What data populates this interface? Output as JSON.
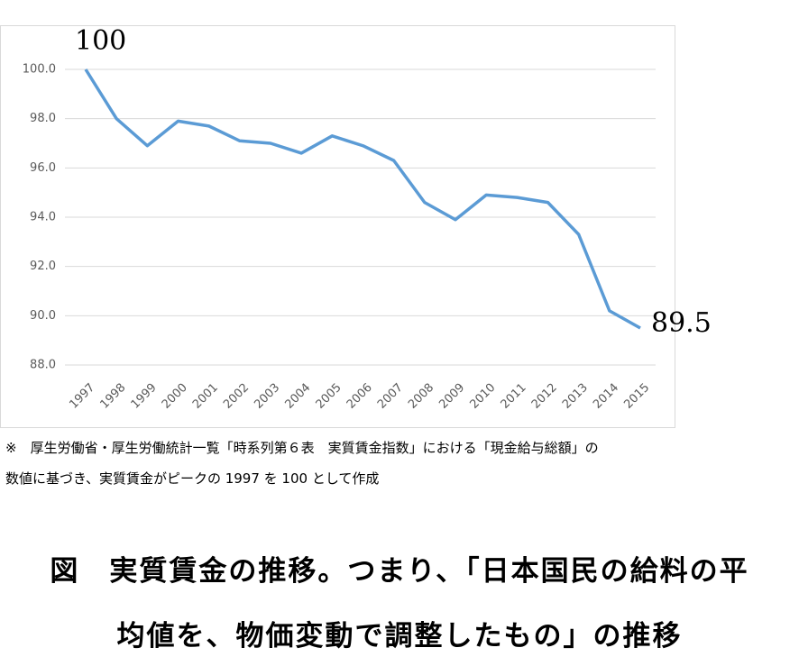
{
  "chart_data": {
    "type": "line",
    "categories": [
      "1997",
      "1998",
      "1999",
      "2000",
      "2001",
      "2002",
      "2003",
      "2004",
      "2005",
      "2006",
      "2007",
      "2008",
      "2009",
      "2010",
      "2011",
      "2012",
      "2013",
      "2014",
      "2015"
    ],
    "series": [
      {
        "color": "#5b9bd5",
        "values": [
          100,
          98.0,
          96.9,
          97.9,
          97.7,
          97.1,
          97.0,
          96.6,
          97.3,
          96.9,
          96.3,
          94.6,
          93.9,
          94.9,
          94.8,
          94.6,
          93.3,
          90.2,
          89.5
        ]
      }
    ],
    "ylim": [
      88,
      100
    ],
    "yticks": [
      {
        "value": 88,
        "label": "88.0"
      },
      {
        "value": 90,
        "label": "90.0"
      },
      {
        "value": 92,
        "label": "92.0"
      },
      {
        "value": 94,
        "label": "94.0"
      },
      {
        "value": 96,
        "label": "96.0"
      },
      {
        "value": 98,
        "label": "98.0"
      },
      {
        "value": 100,
        "label": "100.0"
      }
    ],
    "grid": true,
    "annotations": [
      "100",
      "89.5"
    ]
  },
  "note": [
    "※　厚生労働省・厚生労働統計一覧「時系列第６表　実質賃金指数」における「現金給与総額」の",
    "数値に基づき、実質賃金がピークの 1997 を 100 として作成"
  ],
  "caption": [
    "図　実質賃金の推移。つまり、「日本国民の給料の平",
    "均値を、物価変動で調整したもの」の推移"
  ]
}
